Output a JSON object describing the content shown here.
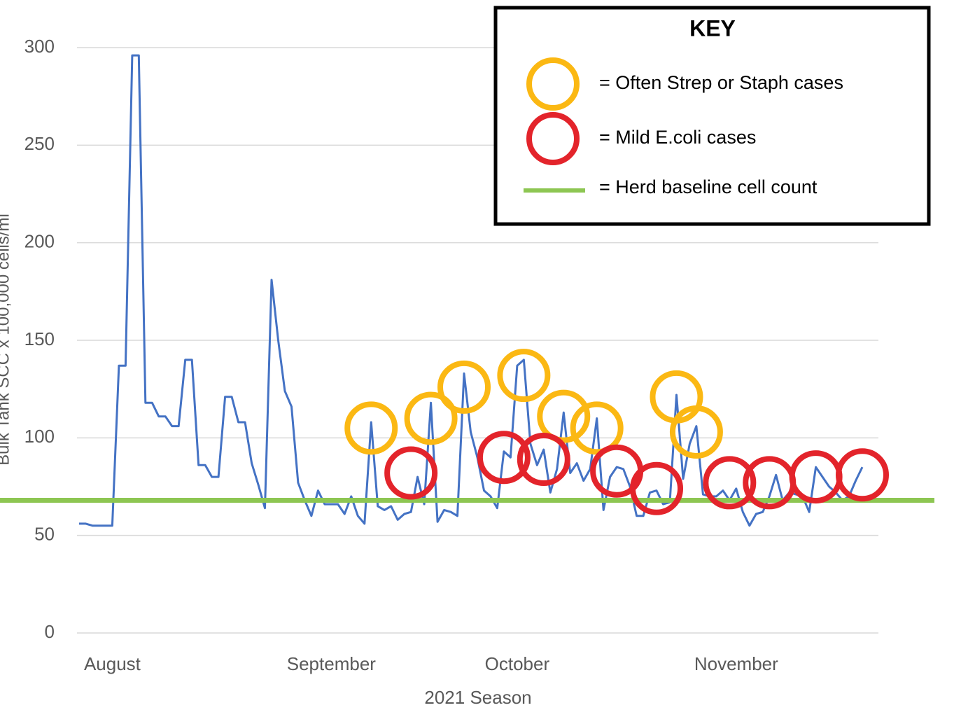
{
  "chart_data": {
    "type": "line",
    "y_label": "Bulk Tank SCC x 100,000 cells/ml",
    "x_label": "2021 Season",
    "categories": [
      null,
      null,
      null,
      null,
      null,
      "August",
      null,
      null,
      null,
      null,
      null,
      null,
      null,
      null,
      null,
      null,
      null,
      null,
      null,
      null,
      null,
      null,
      null,
      null,
      null,
      null,
      null,
      null,
      null,
      null,
      null,
      null,
      null,
      null,
      null,
      null,
      null,
      null,
      "September",
      null,
      null,
      null,
      null,
      null,
      null,
      null,
      null,
      null,
      null,
      null,
      null,
      null,
      null,
      null,
      null,
      null,
      null,
      null,
      null,
      null,
      null,
      null,
      null,
      null,
      null,
      null,
      "October",
      null,
      null,
      null,
      null,
      null,
      null,
      null,
      null,
      null,
      null,
      null,
      null,
      null,
      null,
      null,
      null,
      null,
      null,
      null,
      null,
      null,
      null,
      null,
      null,
      null,
      null,
      null,
      null,
      null,
      null,
      null,
      null,
      "November",
      null,
      null,
      null,
      null,
      null,
      null,
      null,
      null,
      null,
      null,
      null,
      null,
      null,
      null,
      null,
      null,
      null,
      null,
      null
    ],
    "values": [
      56,
      56,
      55,
      55,
      55,
      55,
      137,
      137,
      296,
      296,
      118,
      118,
      111,
      111,
      106,
      106,
      140,
      140,
      86,
      86,
      80,
      80,
      121,
      121,
      108,
      108,
      87,
      76,
      64,
      181,
      150,
      124,
      116,
      77,
      68,
      60,
      73,
      66,
      66,
      66,
      61,
      70,
      60,
      56,
      108,
      65,
      63,
      65,
      58,
      61,
      62,
      80,
      66,
      118,
      57,
      63,
      62,
      60,
      133,
      103,
      90,
      73,
      70,
      64,
      93,
      90,
      137,
      140,
      97,
      86,
      94,
      72,
      84,
      113,
      82,
      87,
      78,
      84,
      110,
      63,
      80,
      85,
      84,
      75,
      60,
      60,
      72,
      73,
      66,
      67,
      122,
      79,
      97,
      106,
      71,
      70,
      70,
      73,
      68,
      74,
      62,
      55,
      61,
      62,
      70,
      81,
      68,
      72,
      71,
      70,
      62,
      85,
      80,
      75,
      72,
      68,
      70,
      78,
      85
    ],
    "color": "#4472c4",
    "ylim": [
      0,
      300
    ],
    "yticks": [
      0,
      50,
      100,
      150,
      200,
      250,
      300
    ],
    "grid": true,
    "baseline": 68,
    "baseline_color": "#8dc652",
    "highlights": [
      {
        "color": "#fbb813",
        "x": [
          44,
          53,
          58,
          67,
          73,
          78,
          90,
          93
        ],
        "y": [
          105,
          110,
          126,
          132,
          111,
          105,
          121,
          103
        ]
      },
      {
        "color": "#e3242b",
        "x": [
          50,
          64,
          70,
          81,
          87,
          98,
          104,
          111,
          118
        ],
        "y": [
          82,
          90,
          89,
          83,
          74,
          77,
          77,
          80,
          81
        ]
      }
    ],
    "legend": {
      "title": "KEY",
      "entries": [
        {
          "label": "= Often Strep or Staph cases",
          "kind": "circle",
          "color": "#fbb813"
        },
        {
          "label": "= Mild E.coli cases",
          "kind": "circle",
          "color": "#e3242b"
        },
        {
          "label": "= Herd baseline cell count",
          "kind": "line",
          "color": "#8dc652"
        }
      ]
    }
  }
}
